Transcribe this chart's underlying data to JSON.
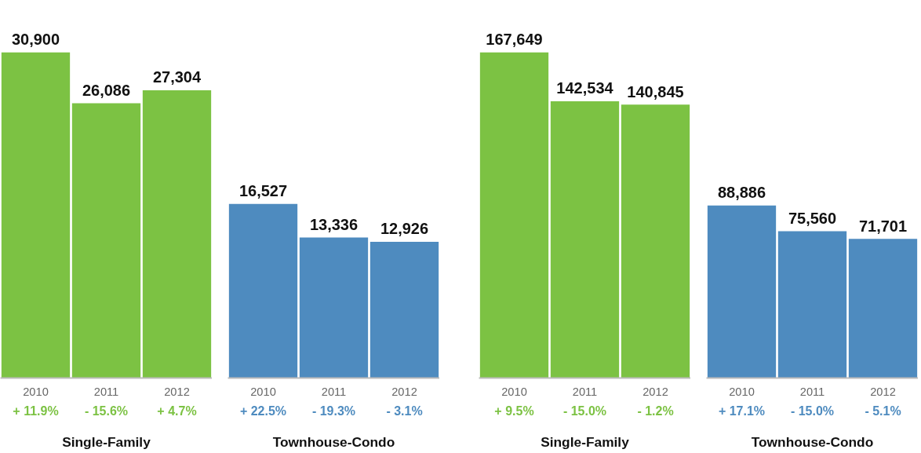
{
  "chart_data": [
    {
      "type": "bar",
      "categories": [
        "2010",
        "2011",
        "2012"
      ],
      "values": [
        30900,
        26086,
        27304
      ],
      "value_labels": [
        "30,900",
        "26,086",
        "27,304"
      ],
      "color": "#7cc243",
      "xlabel": "Single-Family",
      "annotations": [
        "+ 11.9%",
        "- 15.6%",
        "+ 4.7%"
      ]
    },
    {
      "type": "bar",
      "categories": [
        "2010",
        "2011",
        "2012"
      ],
      "values": [
        16527,
        13336,
        12926
      ],
      "value_labels": [
        "16,527",
        "13,336",
        "12,926"
      ],
      "color": "#4e8bbf",
      "xlabel": "Townhouse-Condo",
      "annotations": [
        "+ 22.5%",
        "- 19.3%",
        "- 3.1%"
      ]
    },
    {
      "type": "bar",
      "categories": [
        "2010",
        "2011",
        "2012"
      ],
      "values": [
        167649,
        142534,
        140845
      ],
      "value_labels": [
        "167,649",
        "142,534",
        "140,845"
      ],
      "color": "#7cc243",
      "xlabel": "Single-Family",
      "annotations": [
        "+ 9.5%",
        "- 15.0%",
        "- 1.2%"
      ]
    },
    {
      "type": "bar",
      "categories": [
        "2010",
        "2011",
        "2012"
      ],
      "values": [
        88886,
        75560,
        71701
      ],
      "value_labels": [
        "88,886",
        "75,560",
        "71,701"
      ],
      "color": "#4e8bbf",
      "xlabel": "Townhouse-Condo",
      "annotations": [
        "+ 17.1%",
        "- 15.0%",
        "- 5.1%"
      ]
    }
  ]
}
